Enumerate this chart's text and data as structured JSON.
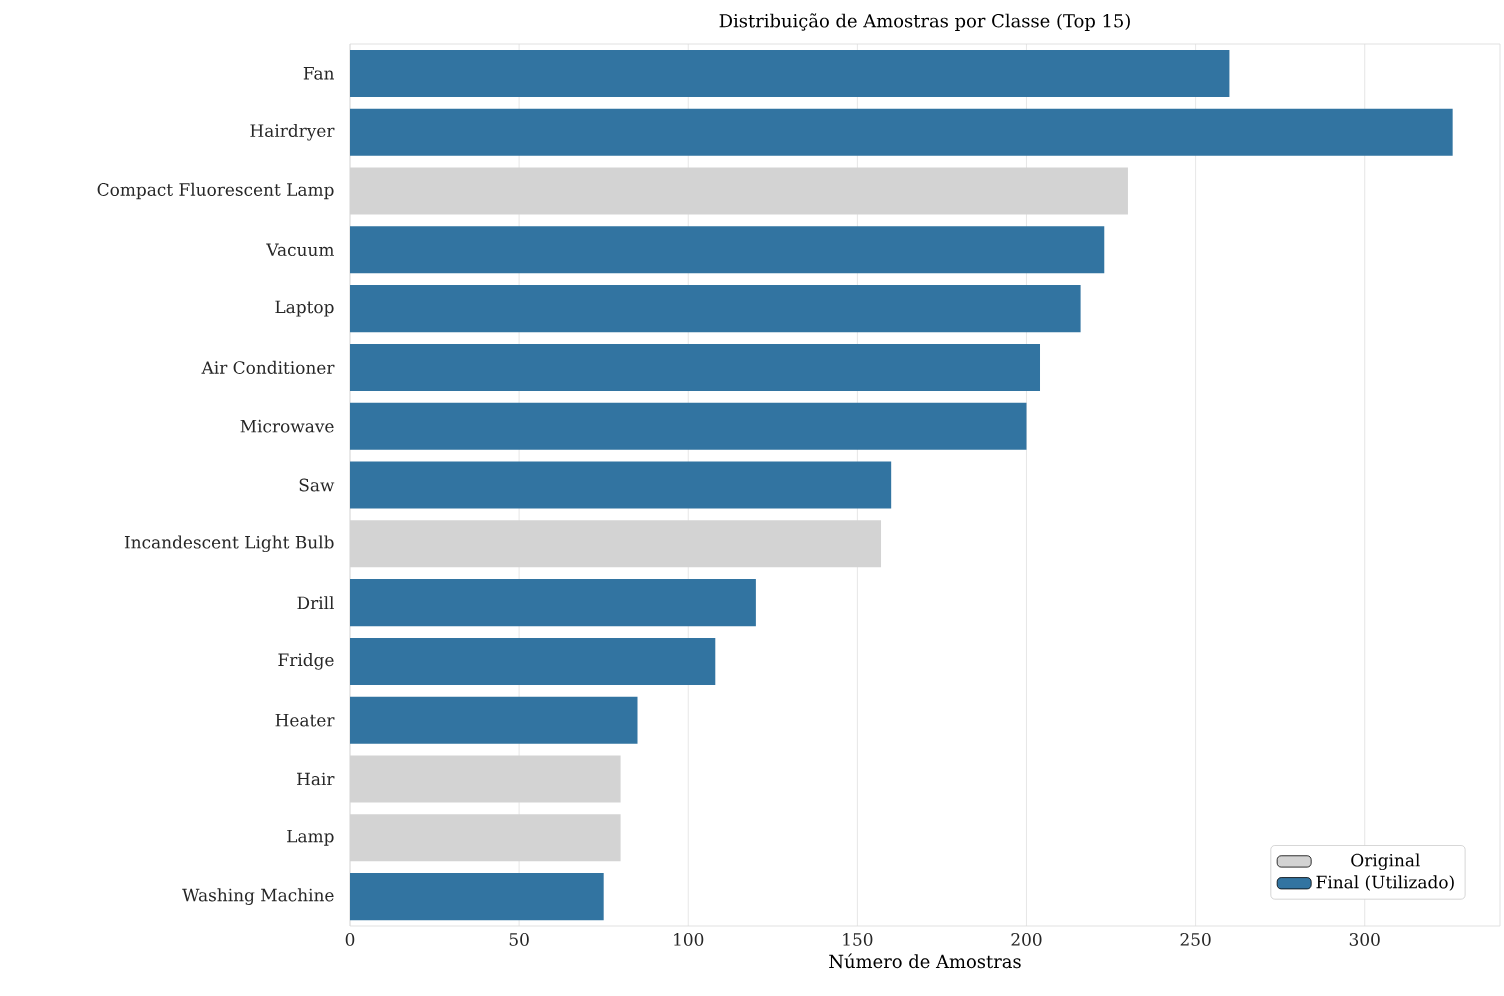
{
  "chart_data": {
    "type": "bar",
    "orientation": "horizontal",
    "title": "Distribuição de Amostras por Classe (Top 15)",
    "xlabel": "Número de Amostras",
    "categories": [
      "Fan",
      "Hairdryer",
      "Compact Fluorescent Lamp",
      "Vacuum",
      "Laptop",
      "Air Conditioner",
      "Microwave",
      "Saw",
      "Incandescent Light Bulb",
      "Drill",
      "Fridge",
      "Heater",
      "Hair",
      "Lamp",
      "Washing Machine"
    ],
    "series": [
      {
        "name": "Original",
        "color": "#d3d3d3",
        "values": [
          null,
          null,
          230,
          null,
          null,
          null,
          null,
          null,
          157,
          null,
          null,
          null,
          80,
          80,
          null
        ]
      },
      {
        "name": "Final (Utilizado)",
        "color": "#3274a1",
        "values": [
          260,
          326,
          null,
          223,
          216,
          204,
          200,
          160,
          null,
          120,
          108,
          85,
          null,
          null,
          75
        ]
      }
    ],
    "xlim": [
      0,
      340
    ],
    "xticks": [
      0,
      50,
      100,
      150,
      200,
      250,
      300
    ],
    "grid": "x",
    "legend": "bottom right"
  }
}
